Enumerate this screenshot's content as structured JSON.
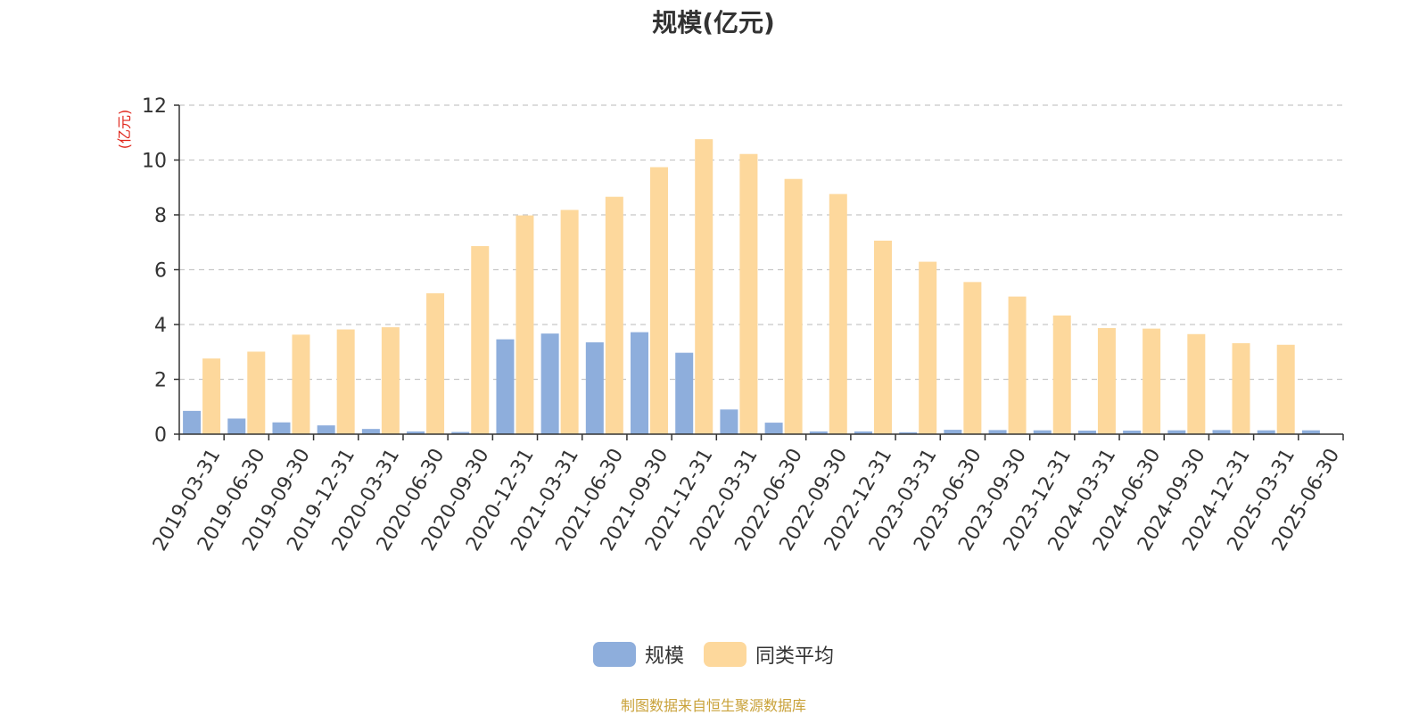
{
  "chart_data": {
    "type": "bar",
    "title": "规模(亿元)",
    "ylabel": "(亿元)",
    "xlabel": "",
    "ylim": [
      0,
      12
    ],
    "yticks": [
      0,
      2,
      4,
      6,
      8,
      10,
      12
    ],
    "grid": true,
    "legend_position": "bottom-center",
    "categories": [
      "2019-03-31",
      "2019-06-30",
      "2019-09-30",
      "2019-12-31",
      "2020-03-31",
      "2020-06-30",
      "2020-09-30",
      "2020-12-31",
      "2021-03-31",
      "2021-06-30",
      "2021-09-30",
      "2021-12-31",
      "2022-03-31",
      "2022-06-30",
      "2022-09-30",
      "2022-12-31",
      "2023-03-31",
      "2023-06-30",
      "2023-09-30",
      "2023-12-31",
      "2024-03-31",
      "2024-06-30",
      "2024-09-30",
      "2024-12-31",
      "2025-03-31",
      "2025-06-30"
    ],
    "series": [
      {
        "name": "规模",
        "color": "#8eaedc",
        "values": [
          0.85,
          0.57,
          0.43,
          0.32,
          0.19,
          0.1,
          0.08,
          3.46,
          3.67,
          3.35,
          3.72,
          2.97,
          0.9,
          0.42,
          0.1,
          0.1,
          0.07,
          0.16,
          0.15,
          0.14,
          0.13,
          0.13,
          0.14,
          0.15,
          0.14,
          0.14
        ]
      },
      {
        "name": "同类平均",
        "color": "#fdd89c",
        "values": [
          2.76,
          3.01,
          3.63,
          3.82,
          3.9,
          5.14,
          6.86,
          7.98,
          8.18,
          8.66,
          9.74,
          10.76,
          10.22,
          9.31,
          8.76,
          7.06,
          6.29,
          5.55,
          5.02,
          4.33,
          3.87,
          3.85,
          3.65,
          3.32,
          3.26,
          null
        ]
      }
    ]
  },
  "source": "制图数据来自恒生聚源数据库"
}
